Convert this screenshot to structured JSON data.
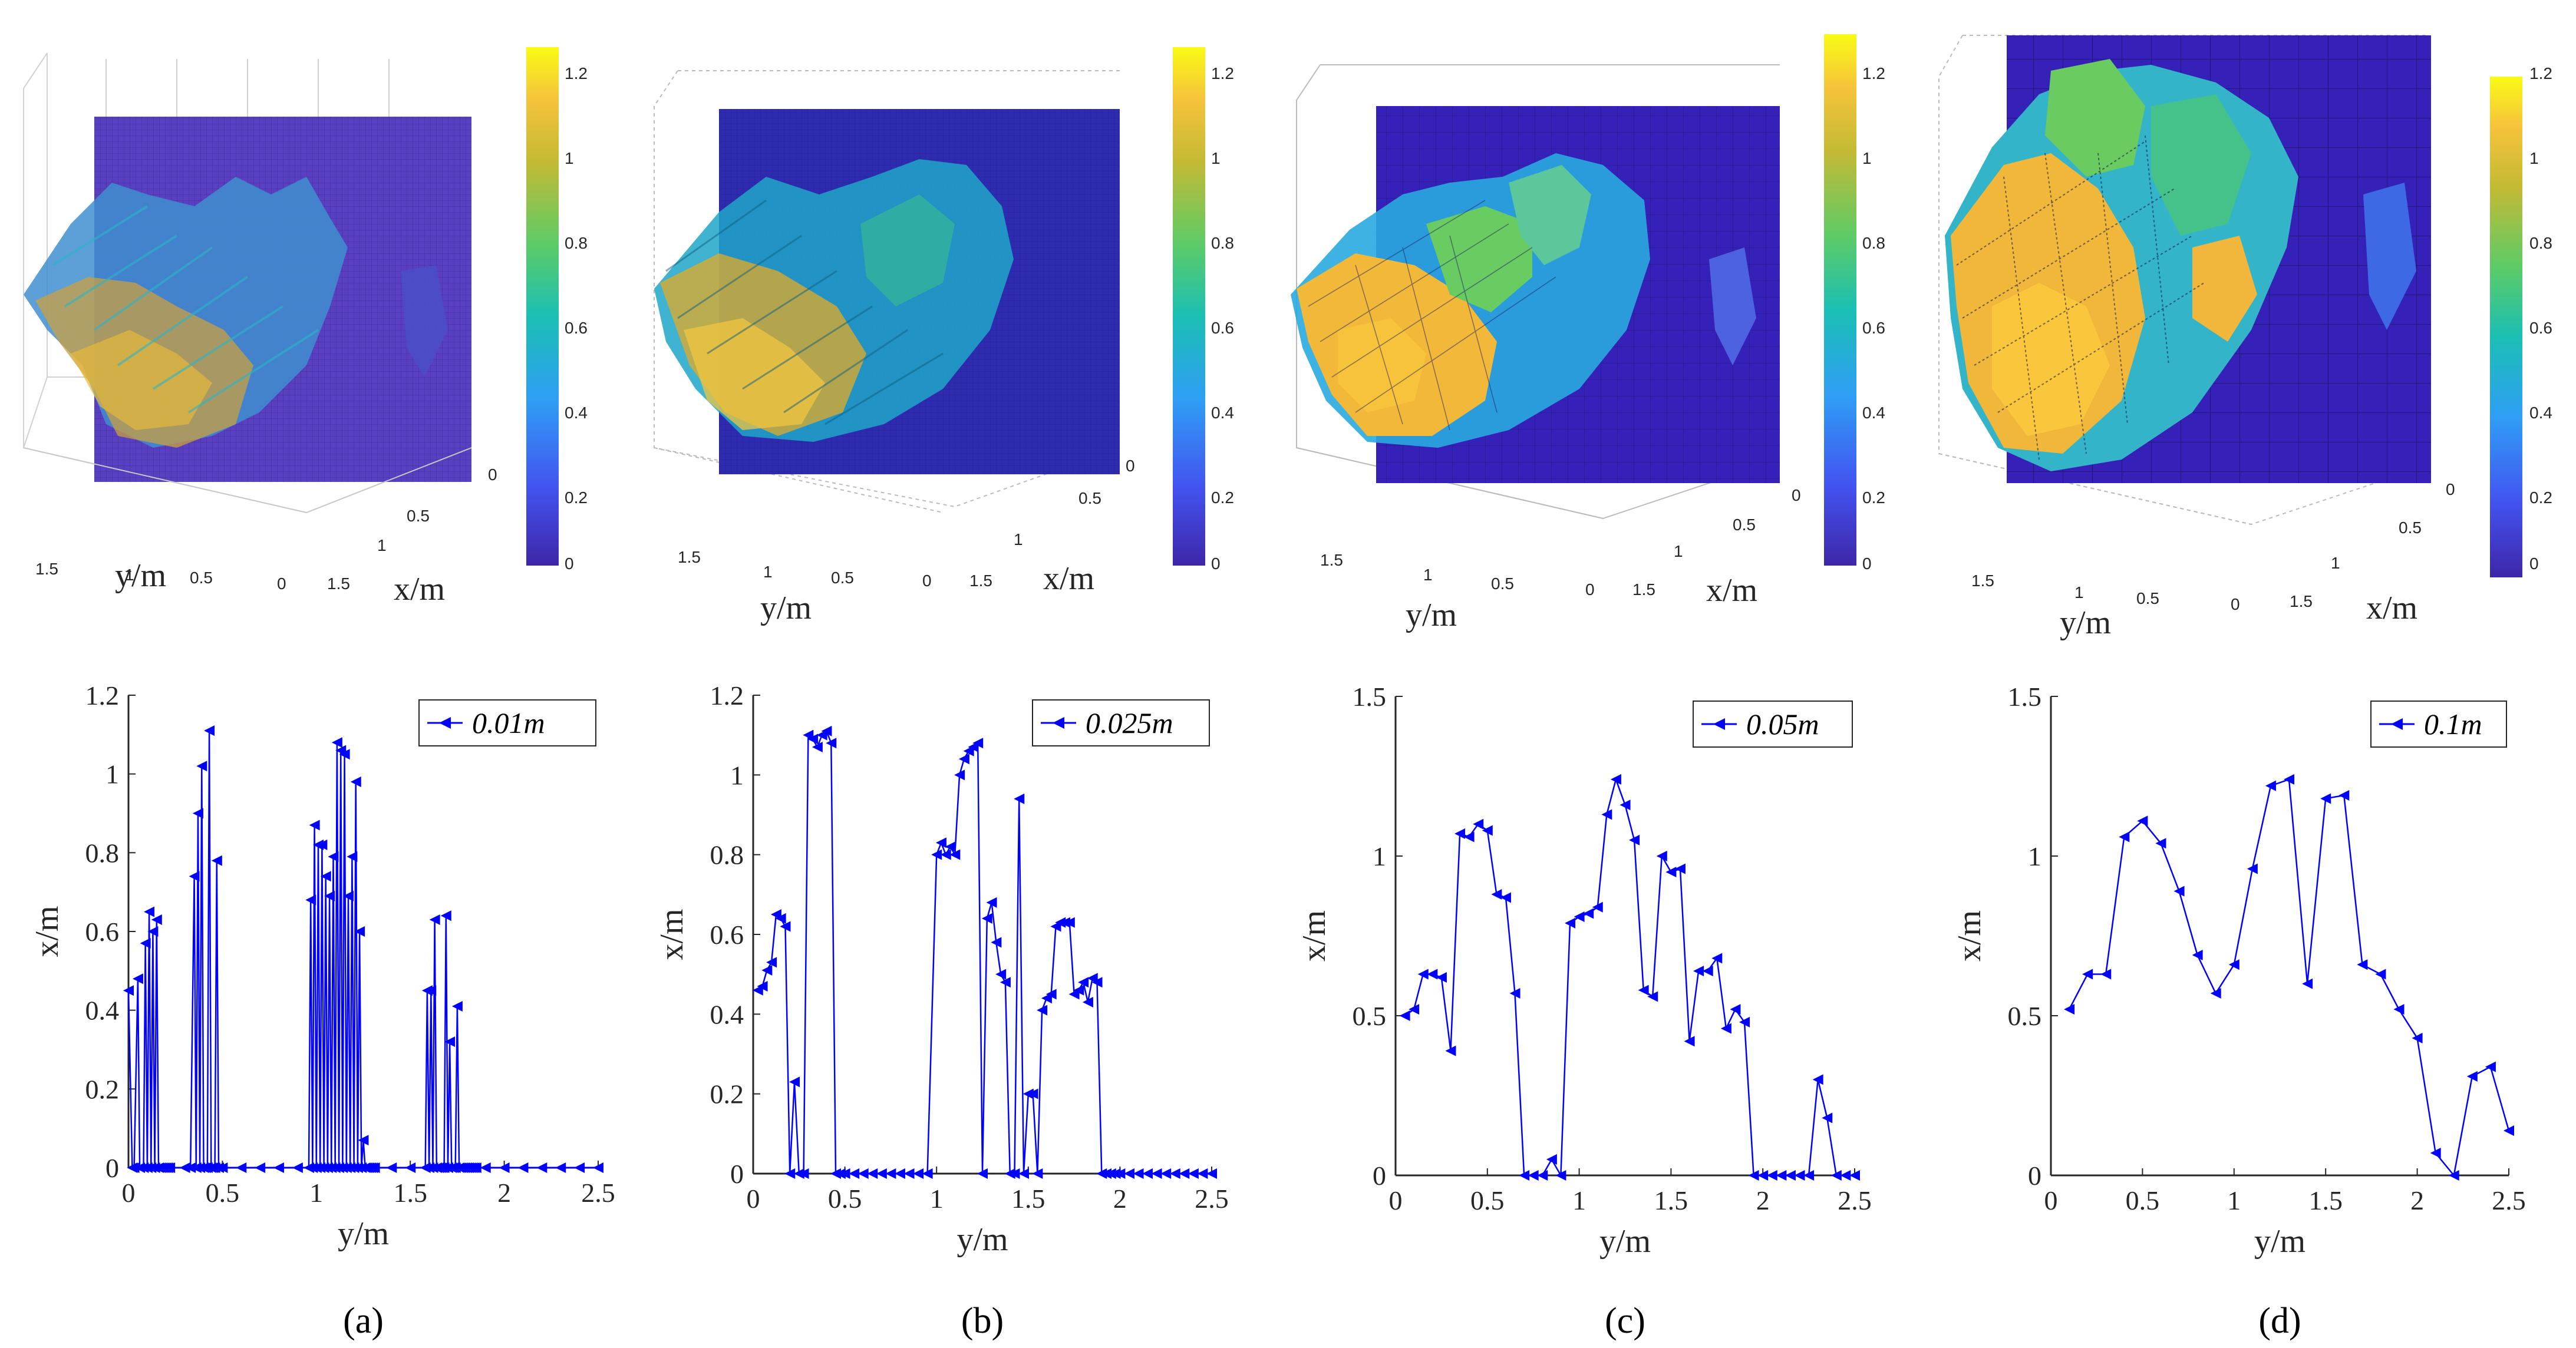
{
  "colors": {
    "line": "#0000ff",
    "axis": "#262626",
    "colormap": [
      "#3e26a8",
      "#4353f0",
      "#2f9ef5",
      "#1bbfb4",
      "#5dcb67",
      "#c4ba34",
      "#f6c33b",
      "#f9fb15"
    ]
  },
  "surface_panels": [
    {
      "xlabel": "y/m",
      "ylabel": "x/m",
      "yticks": [
        "1.5",
        "1",
        "0.5",
        "0"
      ],
      "xticks": [
        "0",
        "0.5",
        "1",
        "1.5"
      ],
      "colorbar_ticks": [
        "1.2",
        "1",
        "0.8",
        "0.6",
        "0.4",
        "0.2",
        "0"
      ]
    },
    {
      "xlabel": "y/m",
      "ylabel": "x/m",
      "yticks": [
        "1.5",
        "1",
        "0.5",
        "0"
      ],
      "xticks": [
        "0",
        "0.5",
        "1",
        "1.5"
      ],
      "colorbar_ticks": [
        "1.2",
        "1",
        "0.8",
        "0.6",
        "0.4",
        "0.2",
        "0"
      ]
    },
    {
      "xlabel": "y/m",
      "ylabel": "x/m",
      "yticks": [
        "1.5",
        "1",
        "0.5",
        "0"
      ],
      "xticks": [
        "0",
        "0.5",
        "1",
        "1.5"
      ],
      "colorbar_ticks": [
        "1.2",
        "1",
        "0.8",
        "0.6",
        "0.4",
        "0.2",
        "0"
      ]
    },
    {
      "xlabel": "y/m",
      "ylabel": "x/m",
      "yticks": [
        "1.5",
        "1",
        "0.5",
        "0"
      ],
      "xticks": [
        "0",
        "0.5",
        "1",
        "1.5"
      ],
      "colorbar_ticks": [
        "1.2",
        "1",
        "0.8",
        "0.6",
        "0.4",
        "0.2",
        "0"
      ]
    }
  ],
  "chart_data": [
    {
      "type": "line",
      "panel_label": "(a)",
      "legend": "0.01m",
      "xlabel": "y/m",
      "ylabel": "x/m",
      "xlim": [
        0,
        2.5
      ],
      "ylim": [
        0,
        1.2
      ],
      "xticks": [
        0,
        0.5,
        1,
        1.5,
        2,
        2.5
      ],
      "yticks": [
        0,
        0.2,
        0.4,
        0.6,
        0.8,
        1,
        1.2
      ],
      "x": [
        0,
        0.02,
        0.03,
        0.05,
        0.06,
        0.08,
        0.09,
        0.1,
        0.11,
        0.12,
        0.13,
        0.14,
        0.15,
        0.16,
        0.17,
        0.18,
        0.19,
        0.2,
        0.21,
        0.22,
        0.3,
        0.33,
        0.35,
        0.36,
        0.37,
        0.38,
        0.39,
        0.4,
        0.41,
        0.42,
        0.43,
        0.44,
        0.45,
        0.46,
        0.47,
        0.48,
        0.5,
        0.6,
        0.7,
        0.8,
        0.9,
        0.96,
        0.97,
        0.98,
        0.99,
        1,
        1.01,
        1.02,
        1.03,
        1.04,
        1.05,
        1.06,
        1.07,
        1.08,
        1.09,
        1.1,
        1.11,
        1.12,
        1.13,
        1.14,
        1.15,
        1.16,
        1.17,
        1.18,
        1.19,
        1.2,
        1.21,
        1.22,
        1.23,
        1.24,
        1.25,
        1.26,
        1.27,
        1.28,
        1.29,
        1.3,
        1.31,
        1.4,
        1.5,
        1.58,
        1.59,
        1.6,
        1.61,
        1.62,
        1.63,
        1.64,
        1.65,
        1.66,
        1.67,
        1.68,
        1.69,
        1.7,
        1.71,
        1.72,
        1.73,
        1.74,
        1.75,
        1.76,
        1.77,
        1.78,
        1.79,
        1.8,
        1.81,
        1.82,
        1.83,
        1.84,
        1.85,
        1.9,
        2,
        2.1,
        2.2,
        2.3,
        2.4,
        2.5
      ],
      "y": [
        0.45,
        0,
        0,
        0.48,
        0,
        0,
        0.57,
        0,
        0.65,
        0,
        0.6,
        0,
        0.63,
        0,
        0,
        0,
        0,
        0,
        0,
        0,
        0,
        0,
        0.74,
        0,
        0.9,
        0,
        1.02,
        0,
        0,
        0,
        1.11,
        0,
        0,
        0,
        0.78,
        0,
        0,
        0,
        0,
        0,
        0,
        0,
        0.68,
        0,
        0.87,
        0,
        0.82,
        0,
        0.82,
        0,
        0.74,
        0,
        0.69,
        0,
        0.79,
        0,
        1.08,
        0,
        1.06,
        0,
        1.05,
        0,
        0.69,
        0,
        0.79,
        0,
        0.98,
        0,
        0.6,
        0,
        0.07,
        0,
        0,
        0,
        0,
        0,
        0,
        0,
        0,
        0,
        0.45,
        0,
        0.45,
        0,
        0.63,
        0,
        0,
        0,
        0,
        0,
        0.64,
        0,
        0.32,
        0,
        0,
        0,
        0.41,
        0,
        0,
        0,
        0,
        0,
        0,
        0,
        0,
        0,
        0,
        0,
        0,
        0,
        0,
        0,
        0,
        0
      ]
    },
    {
      "type": "line",
      "panel_label": "(b)",
      "legend": "0.025m",
      "xlabel": "y/m",
      "ylabel": "x/m",
      "xlim": [
        0,
        2.5
      ],
      "ylim": [
        0,
        1.2
      ],
      "xticks": [
        0,
        0.5,
        1,
        1.5,
        2,
        2.5
      ],
      "yticks": [
        0,
        0.2,
        0.4,
        0.6,
        0.8,
        1,
        1.2
      ],
      "x": [
        0.025,
        0.05,
        0.075,
        0.1,
        0.125,
        0.15,
        0.175,
        0.2,
        0.225,
        0.25,
        0.275,
        0.3,
        0.325,
        0.35,
        0.375,
        0.4,
        0.425,
        0.45,
        0.475,
        0.5,
        0.55,
        0.6,
        0.65,
        0.7,
        0.75,
        0.8,
        0.85,
        0.9,
        0.95,
        1,
        1.025,
        1.05,
        1.075,
        1.1,
        1.125,
        1.15,
        1.175,
        1.2,
        1.225,
        1.25,
        1.275,
        1.3,
        1.325,
        1.35,
        1.375,
        1.4,
        1.425,
        1.45,
        1.475,
        1.5,
        1.525,
        1.55,
        1.575,
        1.6,
        1.625,
        1.65,
        1.675,
        1.7,
        1.725,
        1.75,
        1.775,
        1.8,
        1.825,
        1.85,
        1.875,
        1.9,
        1.925,
        1.95,
        1.975,
        2,
        2.05,
        2.1,
        2.15,
        2.2,
        2.25,
        2.3,
        2.35,
        2.4,
        2.45,
        2.5
      ],
      "y": [
        0.46,
        0.47,
        0.51,
        0.53,
        0.65,
        0.64,
        0.62,
        0,
        0.23,
        0,
        0,
        1.1,
        1.09,
        1.07,
        1.1,
        1.11,
        1.08,
        0,
        0,
        0,
        0,
        0,
        0,
        0,
        0,
        0,
        0,
        0,
        0,
        0.8,
        0.83,
        0.8,
        0.82,
        0.8,
        1,
        1.04,
        1.06,
        1.07,
        1.08,
        0,
        0.64,
        0.68,
        0.58,
        0.5,
        0.48,
        0,
        0,
        0.94,
        0,
        0.2,
        0.2,
        0,
        0.41,
        0.44,
        0.45,
        0.62,
        0.63,
        0.63,
        0.63,
        0.45,
        0.46,
        0.48,
        0.43,
        0.49,
        0.48,
        0,
        0,
        0,
        0,
        0,
        0,
        0,
        0,
        0,
        0,
        0,
        0,
        0,
        0,
        0
      ]
    },
    {
      "type": "line",
      "panel_label": "(c)",
      "legend": "0.05m",
      "xlabel": "y/m",
      "ylabel": "x/m",
      "xlim": [
        0,
        2.5
      ],
      "ylim": [
        0,
        1.5
      ],
      "xticks": [
        0,
        0.5,
        1,
        1.5,
        2,
        2.5
      ],
      "yticks": [
        0,
        0.5,
        1,
        1.5
      ],
      "x": [
        0.05,
        0.1,
        0.15,
        0.2,
        0.25,
        0.3,
        0.35,
        0.4,
        0.45,
        0.5,
        0.55,
        0.6,
        0.65,
        0.7,
        0.75,
        0.8,
        0.85,
        0.9,
        0.95,
        1,
        1.05,
        1.1,
        1.15,
        1.2,
        1.25,
        1.3,
        1.35,
        1.4,
        1.45,
        1.5,
        1.55,
        1.6,
        1.65,
        1.7,
        1.75,
        1.8,
        1.85,
        1.9,
        1.95,
        2,
        2.05,
        2.1,
        2.15,
        2.2,
        2.25,
        2.3,
        2.35,
        2.4,
        2.45,
        2.5
      ],
      "y": [
        0.5,
        0.52,
        0.63,
        0.63,
        0.62,
        0.39,
        1.07,
        1.06,
        1.1,
        1.08,
        0.88,
        0.87,
        0.57,
        0,
        0,
        0,
        0.05,
        0,
        0.79,
        0.81,
        0.82,
        0.84,
        1.13,
        1.24,
        1.16,
        1.05,
        0.58,
        0.56,
        1,
        0.95,
        0.96,
        0.42,
        0.64,
        0.64,
        0.68,
        0.46,
        0.52,
        0.48,
        0,
        0,
        0,
        0,
        0,
        0,
        0,
        0.3,
        0.18,
        0,
        0,
        0
      ]
    },
    {
      "type": "line",
      "panel_label": "(d)",
      "legend": "0.1m",
      "xlabel": "y/m",
      "ylabel": "x/m",
      "xlim": [
        0,
        2.5
      ],
      "ylim": [
        0,
        1.5
      ],
      "xticks": [
        0,
        0.5,
        1,
        1.5,
        2,
        2.5
      ],
      "yticks": [
        0,
        0.5,
        1,
        1.5
      ],
      "x": [
        0.1,
        0.2,
        0.3,
        0.4,
        0.5,
        0.6,
        0.7,
        0.8,
        0.9,
        1,
        1.1,
        1.2,
        1.3,
        1.4,
        1.5,
        1.6,
        1.7,
        1.8,
        1.9,
        2,
        2.1,
        2.2,
        2.3,
        2.4,
        2.5
      ],
      "y": [
        0.52,
        0.63,
        0.63,
        1.06,
        1.11,
        1.04,
        0.89,
        0.69,
        0.57,
        0.66,
        0.96,
        1.22,
        1.24,
        0.6,
        1.18,
        1.19,
        0.66,
        0.63,
        0.52,
        0.43,
        0.07,
        0,
        0.31,
        0.34,
        0.14
      ]
    }
  ]
}
